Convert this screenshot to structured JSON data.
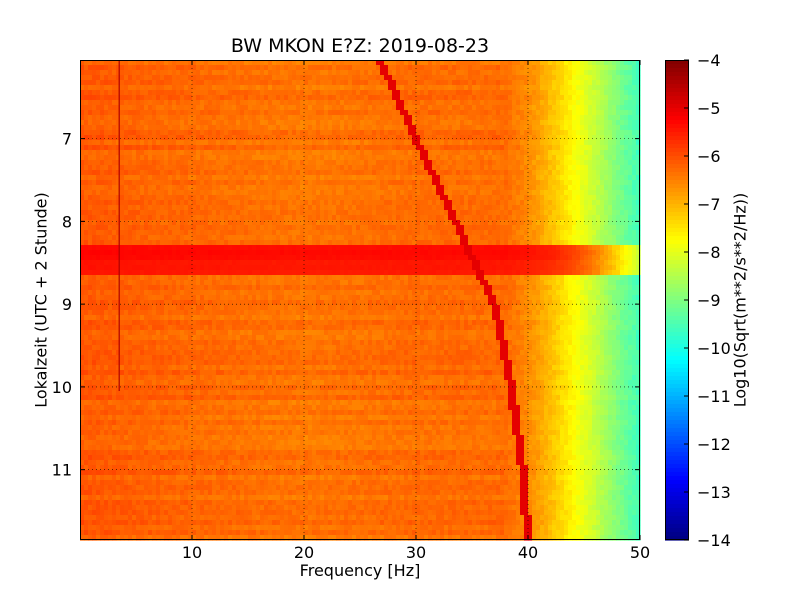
{
  "chart_data": {
    "type": "heatmap",
    "title": "BW MKON E?Z: 2019-08-23",
    "xlabel": "Frequency [Hz]",
    "ylabel": "Lokalzeit (UTC + 2 Stunde)",
    "colorbar_label": "Log10(Sqrt(m**2/s**2/Hz))",
    "xlim": [
      0,
      50
    ],
    "ylim": [
      11.85,
      6.05
    ],
    "y_inverted": true,
    "x_ticks": [
      10,
      20,
      30,
      40,
      50
    ],
    "y_ticks": [
      7,
      8,
      9,
      10,
      11
    ],
    "colorbar_range": [
      -14,
      -4
    ],
    "colorbar_ticks": [
      -4,
      -5,
      -6,
      -7,
      -8,
      -9,
      -10,
      -11,
      -12,
      -13,
      -14
    ],
    "colormap": "jet",
    "grid": true,
    "base_level_profile": {
      "frequency_hz": [
        0,
        5,
        20,
        30,
        38,
        40,
        42,
        44,
        46,
        48,
        50
      ],
      "log10_value": [
        -6.1,
        -6.2,
        -6.4,
        -6.3,
        -6.3,
        -6.6,
        -7.1,
        -7.7,
        -8.3,
        -9.0,
        -9.6
      ]
    },
    "features": {
      "low_freq_line_hz": 3.5,
      "low_freq_line_until": 10.05,
      "broadband_events": [
        {
          "time": 8.38,
          "value": -5.0
        },
        {
          "time": 8.55,
          "value": -5.2
        }
      ],
      "drifting_line": {
        "time": [
          6.05,
          7.0,
          8.0,
          9.0,
          10.0,
          11.0,
          11.85
        ],
        "frequency_hz": [
          26.8,
          30.0,
          33.5,
          37.0,
          38.5,
          39.5,
          40.0
        ],
        "value": -5.2
      }
    }
  }
}
